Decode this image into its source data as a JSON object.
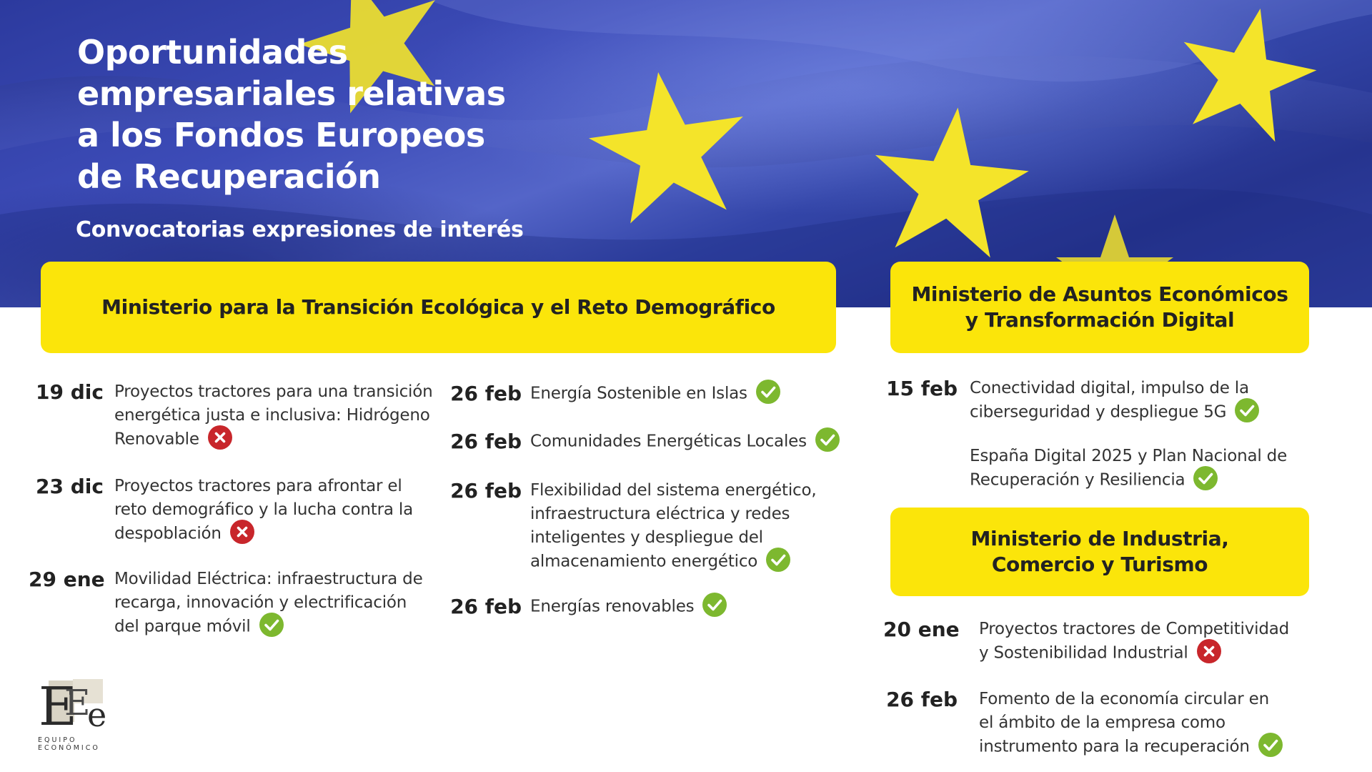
{
  "header": {
    "title_lines": [
      "Oportunidades",
      "empresariales relativas",
      "a los Fondos Europeos",
      "de Recuperación"
    ],
    "subtitle": "Convocatorias expresiones de interés"
  },
  "colors": {
    "flag_blue": "#3343a8",
    "flag_star": "#f4e42a",
    "ministry_yellow": "#fbe50a",
    "status_ok": "#7db82f",
    "status_closed": "#c8262b"
  },
  "ministries": [
    {
      "name": "Ministerio para la Transición Ecológica y el Reto Demográfico",
      "columns": [
        [
          {
            "date": "19 dic",
            "text": "Proyectos tractores para una transición energética justa e inclusiva: Hidrógeno Renovable",
            "status": "closed",
            "status_icon": "x-circle-icon"
          },
          {
            "date": "23 dic",
            "text": "Proyectos tractores para afrontar el reto demográfico y la lucha contra la despoblación",
            "status": "closed",
            "status_icon": "x-circle-icon"
          },
          {
            "date": "29 ene",
            "text": "Movilidad Eléctrica: infraestructura de recarga, innovación y electrificación del parque móvil",
            "status": "open",
            "status_icon": "check-circle-icon"
          }
        ],
        [
          {
            "date": "26 feb",
            "text": "Energía Sostenible en Islas",
            "status": "open",
            "status_icon": "check-circle-icon"
          },
          {
            "date": "26 feb",
            "text": "Comunidades Energéticas Locales",
            "status": "open",
            "status_icon": "check-circle-icon"
          },
          {
            "date": "26 feb",
            "text": "Flexibilidad del sistema energético, infraestructura eléctrica y redes inteligentes y despliegue del almacenamiento energético",
            "status": "open",
            "status_icon": "check-circle-icon"
          },
          {
            "date": "26 feb",
            "text": "Energías renovables",
            "status": "open",
            "status_icon": "check-circle-icon"
          }
        ]
      ]
    },
    {
      "name_lines": [
        "Ministerio de Asuntos Económicos",
        "y Transformación Digital"
      ],
      "entries": [
        {
          "date": "15 feb",
          "text": "Conectividad digital, impulso de la ciberseguridad y despliegue 5G",
          "status": "open",
          "status_icon": "check-circle-icon"
        },
        {
          "date": "",
          "text": "España Digital 2025 y Plan Nacional de Recuperación y Resiliencia",
          "status": "open",
          "status_icon": "check-circle-icon"
        }
      ]
    },
    {
      "name_lines": [
        "Ministerio de Industria,",
        "Comercio y Turismo"
      ],
      "entries": [
        {
          "date": "20 ene",
          "text": "Proyectos tractores de Competitividad y Sostenibilidad Industrial",
          "status": "closed",
          "status_icon": "x-circle-icon"
        },
        {
          "date": "26 feb",
          "text": "Fomento de la economía circular en el ámbito de la empresa como instrumento para la recuperación",
          "status": "open",
          "status_icon": "check-circle-icon"
        }
      ]
    }
  ],
  "logo": {
    "letters": "EEe",
    "text_lines": [
      "EQUIPO",
      "ECONÓMICO"
    ]
  }
}
